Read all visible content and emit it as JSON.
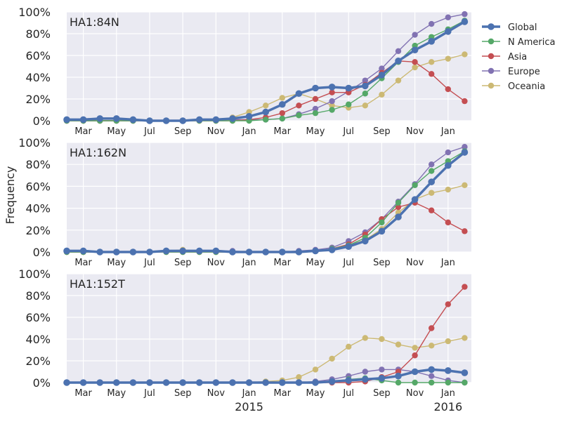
{
  "chart_data": {
    "type": "line",
    "ylabel": "Frequency",
    "x_tick_labels": [
      "Mar",
      "May",
      "Jul",
      "Sep",
      "Nov",
      "Jan",
      "Mar",
      "May",
      "Jul",
      "Sep",
      "Nov",
      "Jan"
    ],
    "x_tick_months": [
      "2014-03",
      "2014-05",
      "2014-07",
      "2014-09",
      "2014-11",
      "2015-01",
      "2015-03",
      "2015-05",
      "2015-07",
      "2015-09",
      "2015-11",
      "2016-01"
    ],
    "year_labels": [
      {
        "label": "2015",
        "month": "2015-01"
      },
      {
        "label": "2016",
        "month": "2016-01"
      }
    ],
    "x_months": [
      "2014-02",
      "2014-03",
      "2014-04",
      "2014-05",
      "2014-06",
      "2014-07",
      "2014-08",
      "2014-09",
      "2014-10",
      "2014-11",
      "2014-12",
      "2015-01",
      "2015-02",
      "2015-03",
      "2015-04",
      "2015-05",
      "2015-06",
      "2015-07",
      "2015-08",
      "2015-09",
      "2015-10",
      "2015-11",
      "2015-12",
      "2016-01",
      "2016-02"
    ],
    "y_tick_labels": [
      "0%",
      "20%",
      "40%",
      "60%",
      "80%",
      "100%"
    ],
    "ylim": [
      0,
      100
    ],
    "grid": true,
    "legend_position": "top-right",
    "legend": [
      {
        "name": "Global",
        "color": "#4c72b0",
        "emphasis": true
      },
      {
        "name": "N America",
        "color": "#55a868"
      },
      {
        "name": "Asia",
        "color": "#c44e52"
      },
      {
        "name": "Europe",
        "color": "#8172b2"
      },
      {
        "name": "Oceania",
        "color": "#ccb974"
      }
    ],
    "panels": [
      {
        "label": "HA1:84N",
        "series": [
          {
            "name": "Global",
            "values": [
              1,
              1,
              2,
              2,
              1,
              0,
              0,
              0,
              1,
              1,
              2,
              4,
              8,
              15,
              25,
              30,
              31,
              30,
              32,
              42,
              55,
              65,
              73,
              82,
              91
            ]
          },
          {
            "name": "N America",
            "values": [
              0,
              0,
              0,
              0,
              0,
              0,
              0,
              0,
              0,
              0,
              0,
              0,
              1,
              2,
              5,
              7,
              10,
              15,
              25,
              39,
              54,
              69,
              77,
              84,
              92
            ]
          },
          {
            "name": "Asia",
            "values": [
              0,
              0,
              0,
              0,
              0,
              0,
              0,
              0,
              0,
              0,
              0,
              1,
              3,
              7,
              14,
              20,
              26,
              26,
              33,
              44,
              55,
              54,
              43,
              29,
              18
            ]
          },
          {
            "name": "Europe",
            "values": [
              0,
              0,
              0,
              0,
              0,
              0,
              0,
              0,
              1,
              1,
              1,
              1,
              1,
              2,
              6,
              11,
              18,
              27,
              37,
              48,
              64,
              79,
              89,
              95,
              98
            ]
          },
          {
            "name": "Oceania",
            "values": [
              0,
              0,
              0,
              0,
              0,
              0,
              0,
              0,
              0,
              0,
              3,
              8,
              14,
              21,
              25,
              20,
              14,
              12,
              14,
              24,
              37,
              49,
              54,
              57,
              61
            ]
          }
        ]
      },
      {
        "label": "HA1:162N",
        "series": [
          {
            "name": "Global",
            "values": [
              1,
              1,
              0,
              0,
              0,
              0,
              1,
              1,
              1,
              1,
              0,
              0,
              0,
              0,
              0,
              1,
              2,
              5,
              10,
              19,
              32,
              48,
              64,
              79,
              91
            ]
          },
          {
            "name": "N America",
            "values": [
              0,
              0,
              0,
              0,
              0,
              0,
              0,
              0,
              0,
              0,
              0,
              0,
              0,
              0,
              0,
              1,
              3,
              6,
              13,
              27,
              45,
              61,
              74,
              83,
              92
            ]
          },
          {
            "name": "Asia",
            "values": [
              0,
              0,
              0,
              0,
              0,
              0,
              0,
              0,
              0,
              0,
              0,
              0,
              0,
              0,
              0,
              1,
              3,
              7,
              16,
              30,
              41,
              45,
              38,
              27,
              19
            ]
          },
          {
            "name": "Europe",
            "values": [
              1,
              1,
              0,
              0,
              0,
              0,
              1,
              1,
              1,
              1,
              1,
              0,
              0,
              0,
              1,
              2,
              4,
              10,
              18,
              30,
              46,
              62,
              80,
              91,
              96
            ]
          },
          {
            "name": "Oceania",
            "values": [
              0,
              0,
              0,
              0,
              0,
              0,
              1,
              2,
              1,
              0,
              0,
              0,
              0,
              0,
              0,
              1,
              2,
              6,
              11,
              21,
              36,
              48,
              54,
              57,
              61
            ]
          }
        ]
      },
      {
        "label": "HA1:152T",
        "series": [
          {
            "name": "Global",
            "values": [
              0,
              0,
              0,
              0,
              0,
              0,
              0,
              0,
              0,
              0,
              0,
              0,
              0,
              0,
              0,
              0,
              1,
              2,
              3,
              4,
              6,
              10,
              12,
              11,
              9
            ]
          },
          {
            "name": "N America",
            "values": [
              0,
              0,
              0,
              0,
              0,
              0,
              0,
              0,
              0,
              0,
              0,
              0,
              0,
              0,
              0,
              0,
              1,
              3,
              4,
              2,
              0,
              0,
              0,
              0,
              0
            ]
          },
          {
            "name": "Asia",
            "values": [
              0,
              0,
              0,
              0,
              0,
              0,
              0,
              0,
              0,
              0,
              0,
              0,
              0,
              0,
              0,
              0,
              0,
              0,
              1,
              5,
              10,
              25,
              50,
              72,
              88
            ]
          },
          {
            "name": "Europe",
            "values": [
              0,
              0,
              0,
              0,
              0,
              0,
              0,
              0,
              0,
              0,
              0,
              0,
              0,
              0,
              0,
              1,
              3,
              6,
              10,
              12,
              12,
              10,
              6,
              2,
              0
            ]
          },
          {
            "name": "Oceania",
            "values": [
              0,
              0,
              0,
              0,
              0,
              0,
              0,
              0,
              0,
              0,
              0,
              0,
              1,
              2,
              5,
              12,
              22,
              33,
              41,
              40,
              35,
              32,
              34,
              38,
              41
            ]
          }
        ]
      }
    ]
  }
}
